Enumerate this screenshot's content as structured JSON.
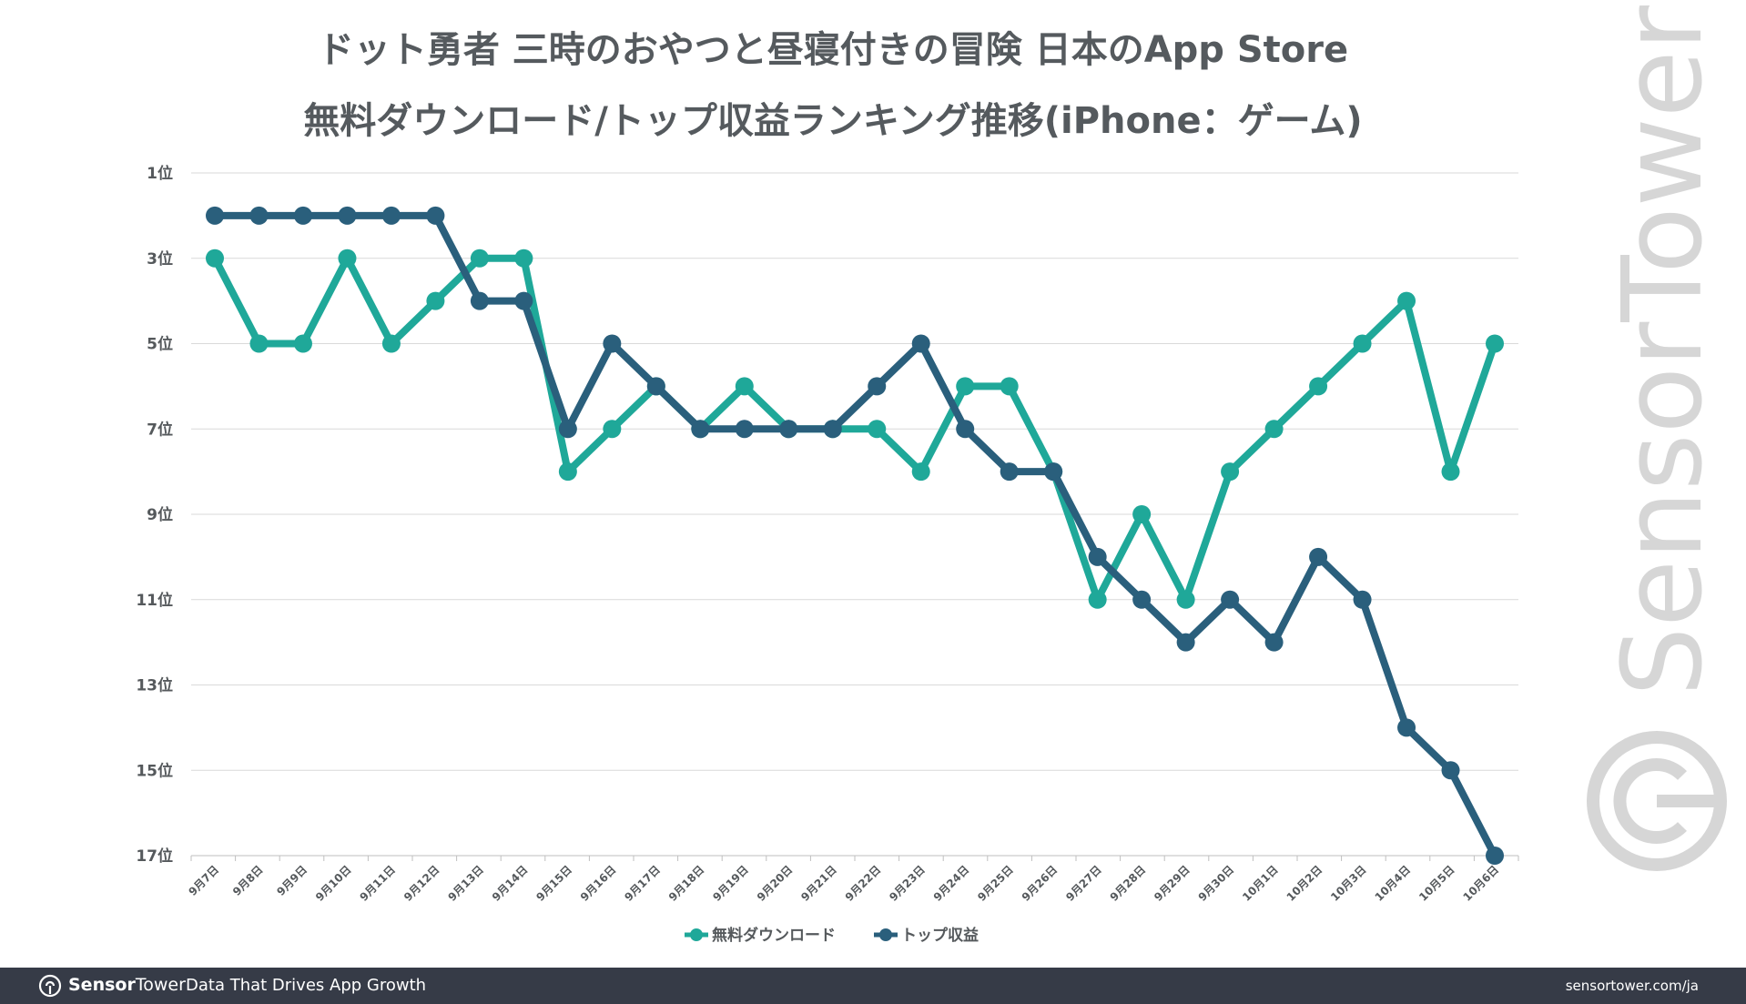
{
  "title_line1": "ドット勇者 三時のおやつと昼寝付きの冒険 日本のApp Store",
  "title_line2": "無料ダウンロード/トップ収益ランキング推移(iPhone：ゲーム)",
  "watermark": "SensorTower",
  "footer": {
    "brand_bold": "Sensor",
    "brand_rest": "Tower",
    "tagline": "Data That Drives App Growth",
    "url": "sensortower.com/ja"
  },
  "chart_data": {
    "type": "line",
    "y_reversed": true,
    "ylim": [
      1,
      17
    ],
    "y_ticks": [
      1,
      3,
      5,
      7,
      9,
      11,
      13,
      15,
      17
    ],
    "y_tick_labels": [
      "1位",
      "3位",
      "5位",
      "7位",
      "9位",
      "11位",
      "13位",
      "15位",
      "17位"
    ],
    "grid": true,
    "legend_position": "bottom",
    "categories": [
      "9月7日",
      "9月8日",
      "9月9日",
      "9月10日",
      "9月11日",
      "9月12日",
      "9月13日",
      "9月14日",
      "9月15日",
      "9月16日",
      "9月17日",
      "9月18日",
      "9月19日",
      "9月20日",
      "9月21日",
      "9月22日",
      "9月23日",
      "9月24日",
      "9月25日",
      "9月26日",
      "9月27日",
      "9月28日",
      "9月29日",
      "9月30日",
      "10月1日",
      "10月2日",
      "10月3日",
      "10月4日",
      "10月5日",
      "10月6日"
    ],
    "series": [
      {
        "name": "無料ダウンロード",
        "color": "#1fa899",
        "values": [
          3,
          5,
          5,
          3,
          5,
          4,
          3,
          3,
          8,
          7,
          6,
          7,
          6,
          7,
          7,
          7,
          8,
          6,
          6,
          8,
          11,
          9,
          11,
          8,
          7,
          6,
          5,
          4,
          8,
          5
        ]
      },
      {
        "name": "トップ収益",
        "color": "#2a5f7c",
        "values": [
          2,
          2,
          2,
          2,
          2,
          2,
          4,
          4,
          7,
          5,
          6,
          7,
          7,
          7,
          7,
          6,
          5,
          7,
          8,
          8,
          10,
          11,
          12,
          11,
          12,
          10,
          11,
          14,
          15,
          17
        ]
      }
    ]
  }
}
